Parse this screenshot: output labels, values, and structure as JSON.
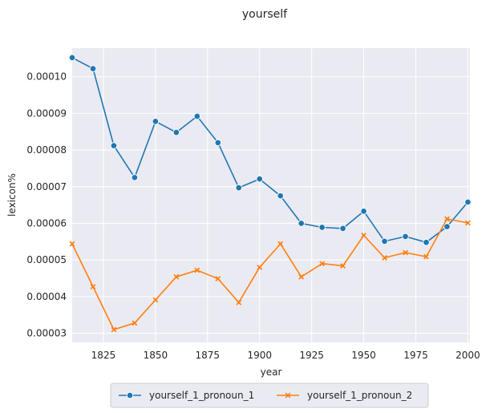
{
  "chart_data": {
    "type": "line",
    "title": "yourself",
    "xlabel": "year",
    "ylabel": "lexicon%",
    "xlim": [
      1810,
      2001
    ],
    "ylim": [
      2.75e-05,
      0.0001078
    ],
    "x": [
      1810,
      1820,
      1830,
      1840,
      1850,
      1860,
      1870,
      1880,
      1890,
      1900,
      1910,
      1920,
      1930,
      1940,
      1950,
      1960,
      1970,
      1980,
      1990,
      2000
    ],
    "xticks": [
      1825,
      1850,
      1875,
      1900,
      1925,
      1950,
      1975,
      2000
    ],
    "xtick_labels": [
      "1825",
      "1850",
      "1875",
      "1900",
      "1925",
      "1950",
      "1975",
      "2000"
    ],
    "yticks": [
      3e-05,
      4e-05,
      5e-05,
      6e-05,
      7e-05,
      8e-05,
      9e-05,
      0.0001
    ],
    "ytick_labels": [
      "0.00003",
      "0.00004",
      "0.00005",
      "0.00006",
      "0.00007",
      "0.00008",
      "0.00009",
      "0.00010"
    ],
    "series": [
      {
        "name": "yourself_1_pronoun_1",
        "color": "#1f77b4",
        "marker": "circle",
        "values": [
          0.0001052,
          0.0001022,
          8.12e-05,
          7.25e-05,
          8.78e-05,
          8.48e-05,
          8.92e-05,
          8.2e-05,
          6.97e-05,
          7.21e-05,
          6.75e-05,
          6e-05,
          5.89e-05,
          5.86e-05,
          6.33e-05,
          5.51e-05,
          5.64e-05,
          5.48e-05,
          5.91e-05,
          6.58e-05
        ]
      },
      {
        "name": "yourself_1_pronoun_2",
        "color": "#ff7f0e",
        "marker": "x",
        "values": [
          5.44e-05,
          4.27e-05,
          3.1e-05,
          3.28e-05,
          3.91e-05,
          4.54e-05,
          4.72e-05,
          4.49e-05,
          3.84e-05,
          4.8e-05,
          5.44e-05,
          4.54e-05,
          4.9e-05,
          4.84e-05,
          5.67e-05,
          5.06e-05,
          5.2e-05,
          5.09e-05,
          6.12e-05,
          6.01e-05
        ]
      }
    ],
    "legend_position": "bottom-center",
    "grid": true
  }
}
